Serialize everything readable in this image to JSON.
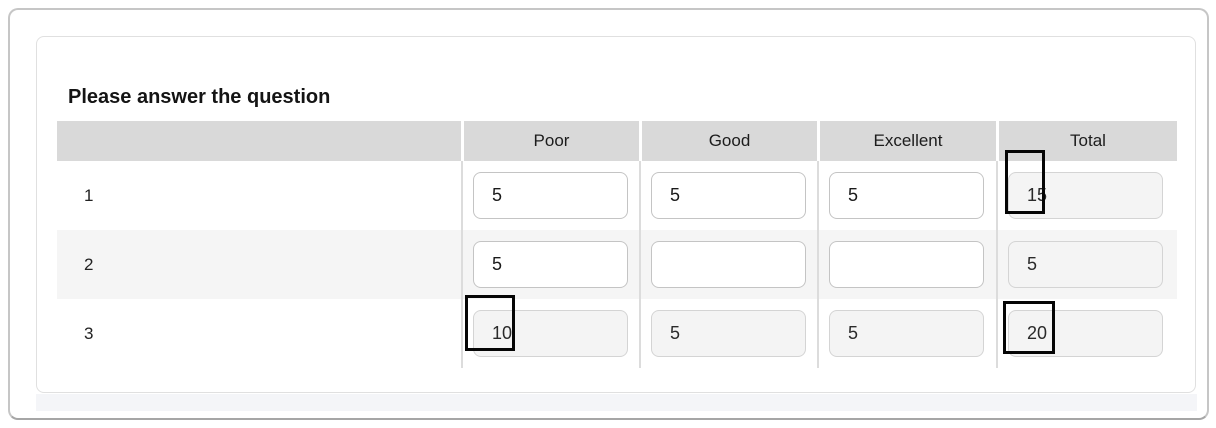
{
  "title": "Please answer the question",
  "table": {
    "columns": [
      "Poor",
      "Good",
      "Excellent",
      "Total"
    ],
    "rows": [
      {
        "label": "1",
        "poor": "5",
        "good": "5",
        "excellent": "5",
        "total": "15"
      },
      {
        "label": "2",
        "poor": "5",
        "good": "",
        "excellent": "",
        "total": "5"
      },
      {
        "label": "3",
        "poor": "10",
        "good": "5",
        "excellent": "5",
        "total": "20"
      }
    ]
  },
  "annotations": {
    "highlighted_values": [
      "15",
      "10",
      "20"
    ]
  },
  "colors": {
    "header_bg": "#d9d9d9",
    "row_stripe_bg": "#f5f5f5",
    "readonly_field_bg": "#f4f4f4",
    "footer_strip_bg": "#f4f5f8",
    "annotation_border": "#050505"
  }
}
